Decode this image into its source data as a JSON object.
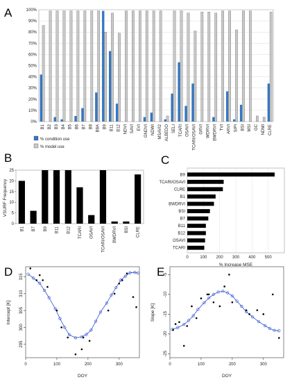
{
  "charts": {
    "A": {
      "letter": "A",
      "type": "bar",
      "categories": [
        "B1",
        "B2",
        "B3",
        "B4",
        "B5",
        "B6",
        "B7",
        "B8",
        "B8A",
        "B9",
        "B11",
        "B12",
        "NDVI",
        "SAVI",
        "EVI",
        "GNDVI",
        "NDWI",
        "MSAVI2",
        "ALBEDO",
        "SELI",
        "TCARI",
        "OSAVI",
        "TCARI/OSAVI",
        "GRVI",
        "WDRVI",
        "BWDRVI",
        "TVI",
        "ARVI",
        "SIPI",
        "BSI",
        "MSI",
        "GC",
        "NDMI",
        "CLRE"
      ],
      "series": [
        {
          "name": "% condition use",
          "color": "#3477c4",
          "values": [
            42,
            0,
            4,
            2,
            0,
            5,
            12,
            0,
            26,
            99,
            63,
            16,
            0,
            0,
            0,
            4,
            8,
            0,
            2,
            25,
            53,
            14,
            34,
            0,
            0,
            4,
            0,
            27,
            2,
            15,
            0,
            0,
            0,
            34
          ]
        },
        {
          "name": "% model use",
          "color": "#c8c8c8",
          "values": [
            86,
            99,
            99,
            99,
            99,
            99,
            99,
            99,
            99,
            80,
            97,
            79,
            99,
            99,
            99,
            99,
            99,
            99,
            5,
            99,
            99,
            97,
            81,
            98,
            98,
            97,
            99,
            99,
            82,
            99,
            99,
            5,
            4,
            98
          ]
        }
      ],
      "ylim": [
        0,
        100
      ],
      "yticks": [
        "0%",
        "10%",
        "20%",
        "30%",
        "40%",
        "50%",
        "60%",
        "70%",
        "80%",
        "90%",
        "100%"
      ],
      "legend": [
        "% condition use",
        "% model use"
      ]
    },
    "B": {
      "letter": "B",
      "type": "bar",
      "categories": [
        "B1",
        "B7",
        "B9",
        "B11",
        "B12",
        "TCARI",
        "OSAVI",
        "TCARI/OSAVI",
        "BWDRVI",
        "BSI",
        "CLRE"
      ],
      "values": [
        20,
        6,
        25,
        25,
        25,
        17,
        4,
        25,
        1,
        1,
        23
      ],
      "ylabel": "VSURF Frequency",
      "ylim": [
        0,
        25
      ],
      "yticks": [
        "0",
        "5",
        "10",
        "15",
        "20",
        "25"
      ]
    },
    "C": {
      "letter": "C",
      "type": "bar",
      "orientation": "horizontal",
      "categories": [
        "B9",
        "TCARI/OSAVI",
        "CLRE",
        "B1",
        "BWDRVI",
        "BSI",
        "B7",
        "B11",
        "B12",
        "OSAVI",
        "TCARI"
      ],
      "values": [
        540,
        225,
        220,
        175,
        165,
        140,
        130,
        115,
        115,
        110,
        105
      ],
      "xlabel": "% Increase MSE",
      "xlim": [
        0,
        600
      ],
      "xticks": [
        "0",
        "100",
        "200",
        "300",
        "400",
        "500"
      ]
    },
    "D": {
      "letter": "D",
      "type": "scatter",
      "xlabel": "DOY",
      "ylabel": "Intercept [K]",
      "xlim": [
        0,
        365
      ],
      "ylim": [
        291,
        318
      ],
      "xticks": [
        "0",
        "100",
        "200",
        "300"
      ],
      "yticks": [
        "295",
        "300",
        "305",
        "310",
        "315"
      ],
      "points": [
        [
          15,
          317.5
        ],
        [
          35,
          314
        ],
        [
          45,
          315.5
        ],
        [
          55,
          314
        ],
        [
          70,
          312
        ],
        [
          100,
          305
        ],
        [
          115,
          300
        ],
        [
          135,
          297
        ],
        [
          160,
          292
        ],
        [
          180,
          293.5
        ],
        [
          185,
          297
        ],
        [
          205,
          296
        ],
        [
          265,
          305
        ],
        [
          285,
          310
        ],
        [
          300,
          313
        ],
        [
          310,
          314
        ],
        [
          325,
          316
        ],
        [
          345,
          309
        ],
        [
          355,
          306
        ]
      ],
      "fit": [
        [
          8,
          315.8
        ],
        [
          25,
          314.6
        ],
        [
          45,
          313.1
        ],
        [
          60,
          311.0
        ],
        [
          75,
          308.8
        ],
        [
          95,
          305.5
        ],
        [
          110,
          302.6
        ],
        [
          125,
          300.0
        ],
        [
          140,
          297.8
        ],
        [
          160,
          296.9
        ],
        [
          180,
          297.2
        ],
        [
          195,
          297.9
        ],
        [
          210,
          299.2
        ],
        [
          225,
          301.8
        ],
        [
          240,
          304.5
        ],
        [
          260,
          307.2
        ],
        [
          275,
          309.6
        ],
        [
          290,
          311.8
        ],
        [
          305,
          314.0
        ],
        [
          320,
          315.2
        ],
        [
          335,
          316.2
        ],
        [
          350,
          316.3
        ],
        [
          360,
          316.1
        ]
      ]
    },
    "E": {
      "letter": "E",
      "type": "scatter",
      "xlabel": "DOY",
      "ylabel": "Slope [K]",
      "xlim": [
        0,
        365
      ],
      "ylim": [
        -26,
        -3
      ],
      "xticks": [
        "0",
        "100",
        "200",
        "300"
      ],
      "yticks": [
        "-25",
        "-20",
        "-15",
        "-10",
        "-5"
      ],
      "points": [
        [
          10,
          -19
        ],
        [
          18,
          -17.5
        ],
        [
          30,
          -17
        ],
        [
          45,
          -23
        ],
        [
          55,
          -18
        ],
        [
          70,
          -13
        ],
        [
          85,
          -16
        ],
        [
          100,
          -11
        ],
        [
          120,
          -10
        ],
        [
          125,
          -10
        ],
        [
          140,
          -12
        ],
        [
          160,
          -13
        ],
        [
          175,
          -8
        ],
        [
          190,
          -5
        ],
        [
          200,
          -12
        ],
        [
          245,
          -14
        ],
        [
          255,
          -15
        ],
        [
          280,
          -14
        ],
        [
          300,
          -15
        ],
        [
          330,
          -10
        ],
        [
          350,
          -21
        ]
      ],
      "fit": [
        [
          8,
          -18.8
        ],
        [
          25,
          -18.4
        ],
        [
          45,
          -17.6
        ],
        [
          60,
          -16.6
        ],
        [
          75,
          -15.4
        ],
        [
          90,
          -13.8
        ],
        [
          110,
          -12.1
        ],
        [
          125,
          -10.9
        ],
        [
          140,
          -10.0
        ],
        [
          155,
          -9.4
        ],
        [
          170,
          -9.2
        ],
        [
          185,
          -9.6
        ],
        [
          200,
          -10.4
        ],
        [
          215,
          -11.7
        ],
        [
          230,
          -13.0
        ],
        [
          245,
          -14.4
        ],
        [
          265,
          -15.7
        ],
        [
          285,
          -16.9
        ],
        [
          305,
          -17.9
        ],
        [
          320,
          -18.6
        ],
        [
          335,
          -19.1
        ],
        [
          350,
          -19.2
        ]
      ]
    }
  }
}
